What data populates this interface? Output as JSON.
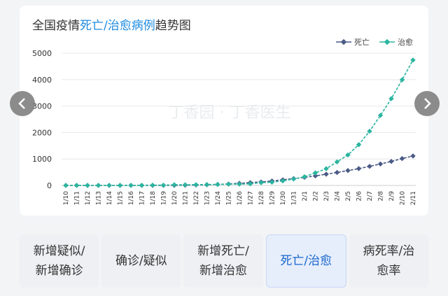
{
  "title": {
    "prefix": "全国疫情",
    "highlight": "死亡/治愈病例",
    "suffix": "趋势图"
  },
  "watermark": "丁香园 · 丁香医生",
  "colors": {
    "death": "#4b5a86",
    "cured": "#2bb5a0",
    "grid": "#e8e8e8",
    "axis_text": "#333333"
  },
  "nav": {
    "prev_icon": "chevron-left-icon",
    "next_icon": "chevron-right-icon"
  },
  "tabs": [
    {
      "line1": "新增疑似/",
      "line2": "新增确诊",
      "active": false
    },
    {
      "line1": "确诊/疑似",
      "line2": "",
      "active": false
    },
    {
      "line1": "新增死亡/",
      "line2": "新增治愈",
      "active": false
    },
    {
      "line1": "死亡/治愈",
      "line2": "",
      "active": true
    },
    {
      "line1": "病死率/治",
      "line2": "愈率",
      "active": false
    }
  ],
  "chart_data": {
    "type": "line",
    "title": "全国疫情死亡/治愈病例趋势图",
    "xlabel": "",
    "ylabel": "",
    "ylim": [
      0,
      5000
    ],
    "yticks": [
      0,
      1000,
      2000,
      3000,
      4000,
      5000
    ],
    "grid": true,
    "legend_position": "top-right",
    "categories": [
      "1/10",
      "1/11",
      "1/12",
      "1/13",
      "1/14",
      "1/15",
      "1/16",
      "1/17",
      "1/18",
      "1/19",
      "1/20",
      "1/21",
      "1/22",
      "1/23",
      "1/24",
      "1/25",
      "1/26",
      "1/27",
      "1/28",
      "1/29",
      "1/30",
      "1/31",
      "2/1",
      "2/2",
      "2/3",
      "2/4",
      "2/5",
      "2/6",
      "2/7",
      "2/8",
      "2/9",
      "2/10",
      "2/11"
    ],
    "series": [
      {
        "name": "死亡",
        "color": "#4b5a86",
        "values": [
          1,
          1,
          1,
          1,
          1,
          1,
          2,
          2,
          3,
          3,
          6,
          9,
          17,
          25,
          41,
          56,
          80,
          106,
          132,
          170,
          213,
          259,
          304,
          361,
          425,
          490,
          563,
          636,
          722,
          811,
          908,
          1016,
          1113
        ]
      },
      {
        "name": "治愈",
        "color": "#2bb5a0",
        "values": [
          2,
          2,
          2,
          2,
          2,
          3,
          4,
          5,
          10,
          10,
          25,
          25,
          28,
          34,
          38,
          49,
          51,
          60,
          103,
          124,
          171,
          243,
          328,
          475,
          632,
          892,
          1153,
          1540,
          2050,
          2649,
          3281,
          3996,
          4740
        ]
      }
    ]
  }
}
